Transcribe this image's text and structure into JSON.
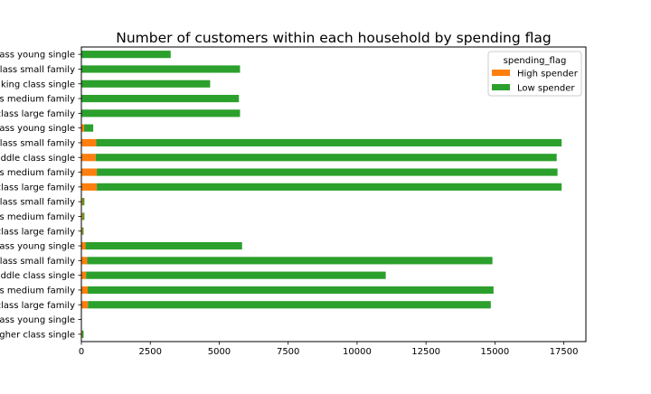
{
  "chart_data": {
    "type": "bar",
    "orientation": "horizontal",
    "stacked": true,
    "title": "Number of customers within each household by spending flag",
    "xlabel": "",
    "ylabel": "",
    "xlim": [
      0,
      18300
    ],
    "xticks": [
      0,
      2500,
      5000,
      7500,
      10000,
      12500,
      15000,
      17500
    ],
    "xtick_labels": [
      "0",
      "2500",
      "5000",
      "7500",
      "10000",
      "12500",
      "15000",
      "17500"
    ],
    "categories": [
      "class young single",
      "class small family",
      "king class single",
      "s medium family",
      "class large family",
      "ass young single",
      "class small family",
      "ddle class single",
      "s medium family",
      "class large family",
      "class small family",
      "s medium family",
      "class large family",
      "class young single",
      "class small family",
      "ddle class single",
      "s medium family",
      "class large family",
      "class young single",
      "gher class single"
    ],
    "series": [
      {
        "name": "High spender",
        "color": "#ff7f0e",
        "values": [
          10,
          15,
          10,
          15,
          15,
          100,
          540,
          520,
          560,
          560,
          50,
          55,
          45,
          150,
          210,
          170,
          230,
          240,
          2,
          30
        ]
      },
      {
        "name": "Low spender",
        "color": "#2ca02c",
        "values": [
          3230,
          5740,
          4660,
          5700,
          5740,
          330,
          16880,
          16720,
          16710,
          16860,
          60,
          55,
          35,
          5680,
          14700,
          10870,
          14720,
          14610,
          3,
          50
        ]
      }
    ],
    "legend": {
      "title": "spending_flag",
      "placement": "upper right"
    },
    "grid": false
  }
}
